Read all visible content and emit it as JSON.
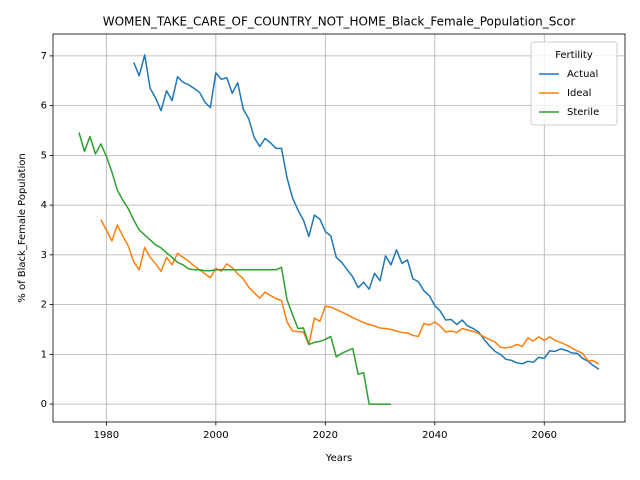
{
  "chart_data": {
    "type": "line",
    "title": "WOMEN_TAKE_CARE_OF_COUNTRY_NOT_HOME_Black_Female_Population_Scor",
    "x_label": "Years",
    "y_label": "% of Black_Female Population",
    "legend_title": "Fertility",
    "legend_position": "upper right",
    "grid": true,
    "xlim": [
      1970.25,
      2074.75
    ],
    "xticks": [
      1980,
      2000,
      2020,
      2040,
      2060
    ],
    "ylim": [
      -0.36,
      7.44
    ],
    "yticks": [
      0,
      1,
      2,
      3,
      4,
      5,
      6,
      7
    ],
    "x": [
      1975,
      1976,
      1977,
      1978,
      1979,
      1980,
      1981,
      1982,
      1983,
      1984,
      1985,
      1986,
      1987,
      1988,
      1989,
      1990,
      1991,
      1992,
      1993,
      1994,
      1995,
      1996,
      1997,
      1998,
      1999,
      2000,
      2001,
      2002,
      2003,
      2004,
      2005,
      2006,
      2007,
      2008,
      2009,
      2010,
      2011,
      2012,
      2013,
      2014,
      2015,
      2016,
      2017,
      2018,
      2019,
      2020,
      2021,
      2022,
      2023,
      2024,
      2025,
      2026,
      2027,
      2028,
      2029,
      2030,
      2031,
      2032,
      2033,
      2034,
      2035,
      2036,
      2037,
      2038,
      2039,
      2040,
      2041,
      2042,
      2043,
      2044,
      2045,
      2046,
      2047,
      2048,
      2049,
      2050,
      2051,
      2052,
      2053,
      2054,
      2055,
      2056,
      2057,
      2058,
      2059,
      2060,
      2061,
      2062,
      2063,
      2064,
      2065,
      2066,
      2067,
      2068,
      2069,
      2070
    ],
    "series": [
      {
        "name": "Actual",
        "color": "#1f77b4",
        "values": [
          null,
          null,
          null,
          null,
          null,
          null,
          null,
          null,
          null,
          null,
          6.87,
          6.6,
          7.02,
          6.35,
          6.15,
          5.9,
          6.3,
          6.1,
          6.58,
          6.47,
          6.42,
          6.35,
          6.27,
          6.07,
          5.96,
          6.66,
          6.53,
          6.56,
          6.25,
          6.46,
          5.93,
          5.74,
          5.36,
          5.18,
          5.34,
          5.25,
          5.14,
          5.14,
          4.55,
          4.15,
          3.9,
          3.7,
          3.37,
          3.8,
          3.72,
          3.47,
          3.38,
          2.95,
          2.85,
          2.7,
          2.56,
          2.34,
          2.45,
          2.31,
          2.63,
          2.48,
          2.98,
          2.8,
          3.1,
          2.83,
          2.9,
          2.52,
          2.46,
          2.28,
          2.18,
          1.98,
          1.87,
          1.69,
          1.7,
          1.6,
          1.69,
          1.57,
          1.52,
          1.45,
          1.3,
          1.17,
          1.06,
          1.0,
          0.9,
          0.88,
          0.83,
          0.81,
          0.86,
          0.84,
          0.94,
          0.92,
          1.07,
          1.06,
          1.11,
          1.08,
          1.03,
          1.02,
          0.92,
          0.86,
          0.77,
          0.7
        ]
      },
      {
        "name": "Ideal",
        "color": "#ff7f0e",
        "values": [
          null,
          null,
          null,
          null,
          3.71,
          3.5,
          3.28,
          3.6,
          3.38,
          3.18,
          2.86,
          2.7,
          3.15,
          2.95,
          2.82,
          2.67,
          2.95,
          2.8,
          3.03,
          2.95,
          2.88,
          2.78,
          2.7,
          2.62,
          2.54,
          2.73,
          2.67,
          2.82,
          2.74,
          2.62,
          2.52,
          2.35,
          2.24,
          2.13,
          2.25,
          2.18,
          2.12,
          2.08,
          1.65,
          1.47,
          1.46,
          1.45,
          1.2,
          1.73,
          1.66,
          1.97,
          1.95,
          1.9,
          1.85,
          1.8,
          1.74,
          1.69,
          1.64,
          1.6,
          1.57,
          1.53,
          1.52,
          1.5,
          1.47,
          1.44,
          1.43,
          1.38,
          1.36,
          1.62,
          1.59,
          1.65,
          1.57,
          1.45,
          1.47,
          1.44,
          1.52,
          1.49,
          1.46,
          1.42,
          1.35,
          1.3,
          1.25,
          1.14,
          1.13,
          1.15,
          1.2,
          1.16,
          1.33,
          1.27,
          1.35,
          1.28,
          1.35,
          1.28,
          1.24,
          1.19,
          1.13,
          1.07,
          1.02,
          0.87,
          0.87,
          0.8
        ]
      },
      {
        "name": "Sterile",
        "color": "#2ca02c",
        "values": [
          5.46,
          5.08,
          5.38,
          5.03,
          5.23,
          4.98,
          4.67,
          4.3,
          4.1,
          3.93,
          3.7,
          3.5,
          3.4,
          3.3,
          3.2,
          3.14,
          3.04,
          2.95,
          2.85,
          2.8,
          2.72,
          2.7,
          2.7,
          2.68,
          2.68,
          2.7,
          2.7,
          2.7,
          2.7,
          2.7,
          2.7,
          2.7,
          2.7,
          2.7,
          2.7,
          2.7,
          2.7,
          2.75,
          2.1,
          1.8,
          1.52,
          1.53,
          1.2,
          1.24,
          1.26,
          1.3,
          1.36,
          0.95,
          1.02,
          1.07,
          1.12,
          0.6,
          0.63,
          0,
          0,
          0,
          0,
          0,
          null,
          null,
          null,
          null,
          null,
          null,
          null,
          null,
          null,
          null,
          null,
          null,
          null,
          null,
          null,
          null,
          null,
          null,
          null,
          null,
          null,
          null,
          null,
          null,
          null,
          null,
          null,
          null,
          null,
          null,
          null,
          null,
          null,
          null,
          null,
          null,
          null,
          null
        ]
      }
    ]
  }
}
